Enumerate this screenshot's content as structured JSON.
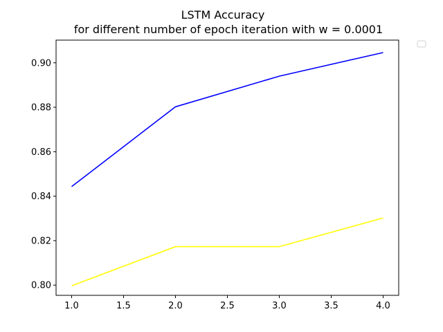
{
  "chart_data": {
    "type": "line",
    "title_line1": "LSTM Accuracy",
    "title_line2": "for different number of epoch iteration with w = 0.0001",
    "xlabel": "",
    "ylabel": "",
    "x": [
      1.0,
      2.0,
      3.0,
      4.0
    ],
    "xlim": [
      0.85,
      4.15
    ],
    "ylim": [
      0.7954,
      0.9102
    ],
    "xticks": [
      1.0,
      1.5,
      2.0,
      2.5,
      3.0,
      3.5,
      4.0
    ],
    "xtick_labels": [
      "1.0",
      "1.5",
      "2.0",
      "2.5",
      "3.0",
      "3.5",
      "4.0"
    ],
    "yticks": [
      0.8,
      0.82,
      0.84,
      0.86,
      0.88,
      0.9
    ],
    "ytick_labels": [
      "0.80",
      "0.82",
      "0.84",
      "0.86",
      "0.88",
      "0.90"
    ],
    "grid": false,
    "legend": "top-right (empty)",
    "series": [
      {
        "values": [
          0.8443,
          0.8802,
          0.894,
          0.9046
        ],
        "color": "#0000ff"
      },
      {
        "values": [
          0.7997,
          0.8173,
          0.8173,
          0.8302
        ],
        "color": "#ffff00"
      }
    ]
  }
}
